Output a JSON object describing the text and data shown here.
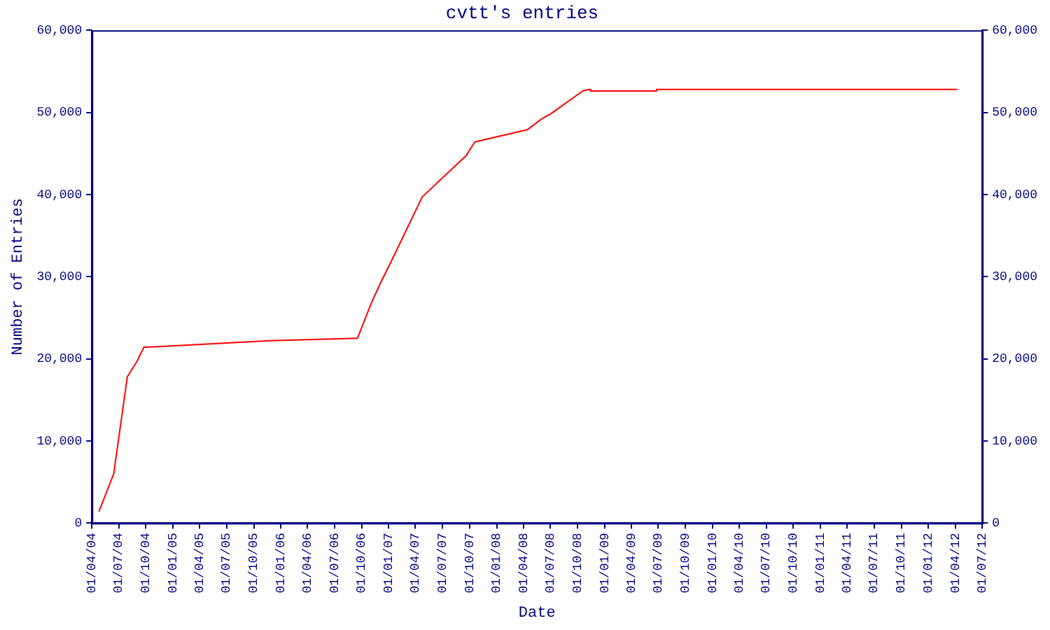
{
  "chart_data": {
    "type": "line",
    "title": "cvtt's entries",
    "xlabel": "Date",
    "ylabel": "Number of Entries",
    "x": [
      "2004-04-25",
      "2004-06-14",
      "2004-07-30",
      "2004-09-01",
      "2004-09-24",
      "2004-11-24",
      "2005-11-21",
      "2006-09-17",
      "2006-11-03",
      "2006-12-06",
      "2007-01-07",
      "2007-04-24",
      "2007-08-02",
      "2007-09-19",
      "2007-10-19",
      "2008-04-14",
      "2008-06-01",
      "2008-07-01",
      "2008-10-18",
      "2008-11-10",
      "2008-11-14",
      "2009-06-22",
      "2009-06-25",
      "2012-04-08"
    ],
    "series": [
      {
        "color": "#ff0000",
        "values": [
          1400,
          6000,
          17800,
          19700,
          21400,
          21500,
          22200,
          22500,
          26800,
          29400,
          31700,
          39700,
          43100,
          44700,
          46400,
          47900,
          49200,
          49800,
          52600,
          52800,
          52600,
          52600,
          52800,
          52800
        ]
      }
    ],
    "xlim": [
      "2004-04-01",
      "2012-07-01"
    ],
    "xticks": [
      {
        "value": "2004-04-01",
        "label": "01/04/04"
      },
      {
        "value": "2004-07-01",
        "label": "01/07/04"
      },
      {
        "value": "2004-10-01",
        "label": "01/10/04"
      },
      {
        "value": "2005-01-01",
        "label": "01/01/05"
      },
      {
        "value": "2005-04-01",
        "label": "01/04/05"
      },
      {
        "value": "2005-07-01",
        "label": "01/07/05"
      },
      {
        "value": "2005-10-01",
        "label": "01/10/05"
      },
      {
        "value": "2006-01-01",
        "label": "01/01/06"
      },
      {
        "value": "2006-04-01",
        "label": "01/04/06"
      },
      {
        "value": "2006-07-01",
        "label": "01/07/06"
      },
      {
        "value": "2006-10-01",
        "label": "01/10/06"
      },
      {
        "value": "2007-01-01",
        "label": "01/01/07"
      },
      {
        "value": "2007-04-01",
        "label": "01/04/07"
      },
      {
        "value": "2007-07-01",
        "label": "01/07/07"
      },
      {
        "value": "2007-10-01",
        "label": "01/10/07"
      },
      {
        "value": "2008-01-01",
        "label": "01/01/08"
      },
      {
        "value": "2008-04-01",
        "label": "01/04/08"
      },
      {
        "value": "2008-07-01",
        "label": "01/07/08"
      },
      {
        "value": "2008-10-01",
        "label": "01/10/08"
      },
      {
        "value": "2009-01-01",
        "label": "01/01/09"
      },
      {
        "value": "2009-04-01",
        "label": "01/04/09"
      },
      {
        "value": "2009-07-01",
        "label": "01/07/09"
      },
      {
        "value": "2009-10-01",
        "label": "01/10/09"
      },
      {
        "value": "2010-01-01",
        "label": "01/01/10"
      },
      {
        "value": "2010-04-01",
        "label": "01/04/10"
      },
      {
        "value": "2010-07-01",
        "label": "01/07/10"
      },
      {
        "value": "2010-10-01",
        "label": "01/10/10"
      },
      {
        "value": "2011-01-01",
        "label": "01/01/11"
      },
      {
        "value": "2011-04-01",
        "label": "01/04/11"
      },
      {
        "value": "2011-07-01",
        "label": "01/07/11"
      },
      {
        "value": "2011-10-01",
        "label": "01/10/11"
      },
      {
        "value": "2012-01-01",
        "label": "01/01/12"
      },
      {
        "value": "2012-04-01",
        "label": "01/04/12"
      },
      {
        "value": "2012-07-01",
        "label": "01/07/12"
      }
    ],
    "ylim": [
      0,
      60000
    ],
    "yticks": [
      0,
      {
        "value": 10000,
        "label": "10,000"
      },
      {
        "value": 20000,
        "label": "20,000"
      },
      {
        "value": 30000,
        "label": "30,000"
      },
      {
        "value": 40000,
        "label": "40,000"
      },
      {
        "value": 50000,
        "label": "50,000"
      },
      {
        "value": 60000,
        "label": "60,000"
      }
    ],
    "y2lim": [
      0,
      60000
    ],
    "y2ticks": [
      0,
      {
        "value": 10000,
        "label": "10,000"
      },
      {
        "value": 20000,
        "label": "20,000"
      },
      {
        "value": 30000,
        "label": "30,000"
      },
      {
        "value": 40000,
        "label": "40,000"
      },
      {
        "value": 50000,
        "label": "50,000"
      },
      {
        "value": 60000,
        "label": "60,000"
      }
    ],
    "grid": false,
    "legend": false,
    "marker": "none",
    "line_style": "solid"
  }
}
